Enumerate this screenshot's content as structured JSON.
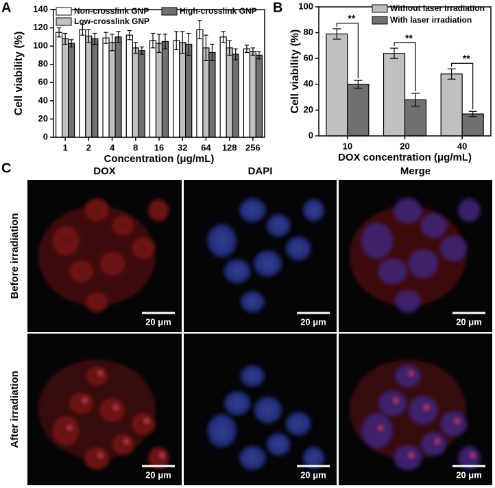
{
  "chart_data": [
    {
      "type": "bar",
      "ylabel": "Cell viability (%)",
      "xlabel": "Concentration (μg/mL)",
      "categories": [
        "1",
        "2",
        "4",
        "8",
        "16",
        "32",
        "64",
        "128",
        "256"
      ],
      "series": [
        {
          "name": "Non-crosslink GNP",
          "color": "#ffffff",
          "values": [
            115,
            118,
            109,
            112,
            106,
            106,
            118,
            110,
            97
          ],
          "errors": [
            5,
            6,
            6,
            5,
            8,
            10,
            10,
            6,
            4
          ]
        },
        {
          "name": "Low-crosslink GNP",
          "color": "#c0c0c0",
          "values": [
            108,
            111,
            104,
            98,
            103,
            104,
            98,
            98,
            94
          ],
          "errors": [
            6,
            7,
            9,
            6,
            10,
            12,
            14,
            8,
            4
          ]
        },
        {
          "name": "High-crosslink GNP",
          "color": "#707070",
          "values": [
            103,
            108,
            110,
            95,
            105,
            102,
            93,
            91,
            90
          ],
          "errors": [
            4,
            6,
            6,
            4,
            8,
            12,
            9,
            6,
            4
          ]
        }
      ],
      "ylim": [
        0,
        140
      ],
      "yticks": [
        0,
        20,
        40,
        60,
        80,
        100,
        120,
        140
      ]
    },
    {
      "type": "bar",
      "ylabel": "Cell viability (%)",
      "xlabel": "DOX concentration (μg/mL)",
      "categories": [
        "10",
        "20",
        "40"
      ],
      "series": [
        {
          "name": "Without laser irradiation",
          "color": "#c0c0c0",
          "values": [
            79,
            64,
            48
          ],
          "errors": [
            4,
            4,
            4
          ]
        },
        {
          "name": "With laser irradiation",
          "color": "#707070",
          "values": [
            40,
            28,
            17
          ],
          "errors": [
            3,
            5,
            2
          ]
        }
      ],
      "annotations": [
        "**",
        "**",
        "**"
      ],
      "ylim": [
        0,
        100
      ],
      "yticks": [
        0,
        20,
        40,
        60,
        80,
        100
      ]
    }
  ],
  "panel_labels": [
    "A",
    "B",
    "C"
  ],
  "panel_c": {
    "columns": [
      "DOX",
      "DAPI",
      "Merge"
    ],
    "rows": [
      "Before irradiation",
      "After irradiation"
    ],
    "scale_bars": [
      "20 μm",
      "20 μm",
      "20 μm",
      "20 μm",
      "20 μm",
      "20 μm"
    ]
  }
}
